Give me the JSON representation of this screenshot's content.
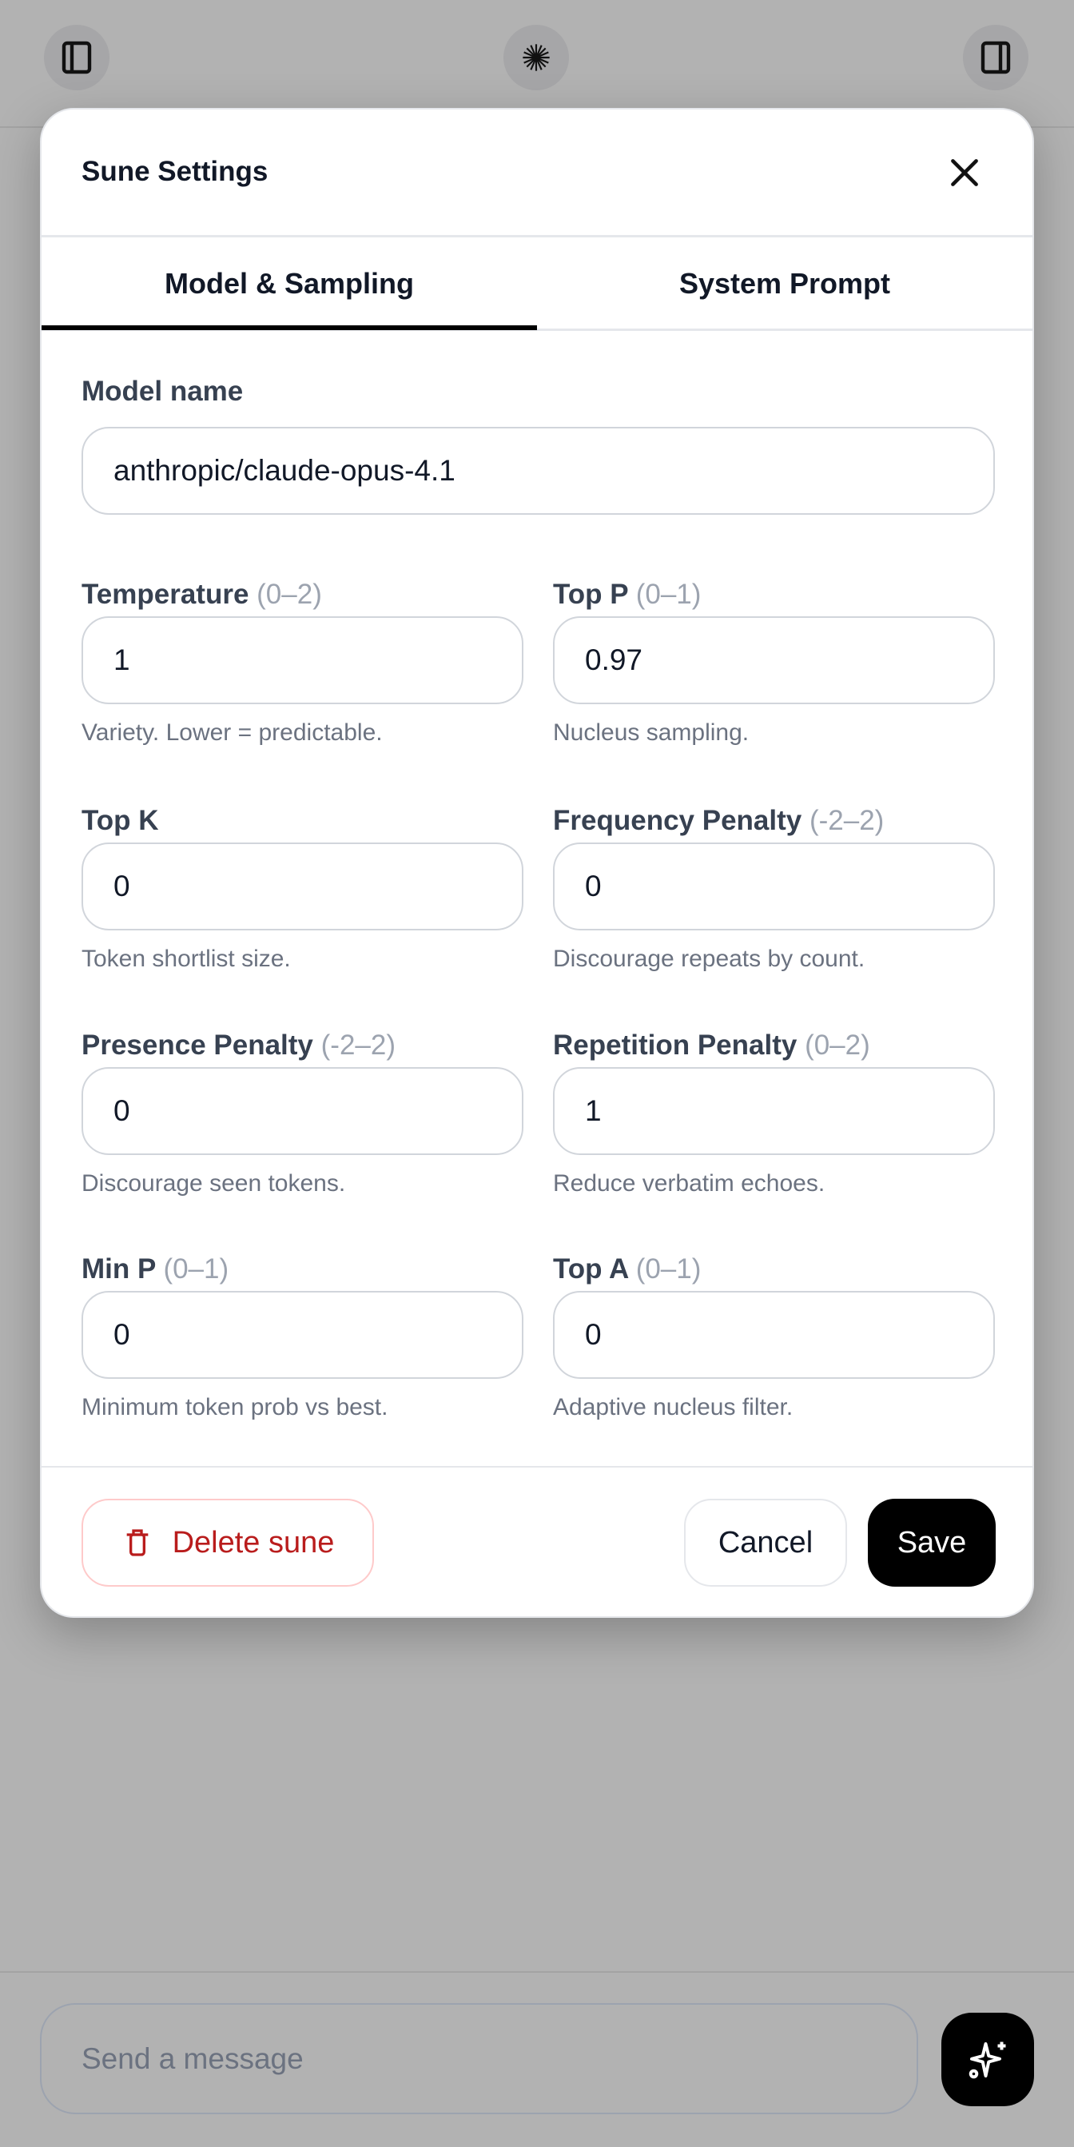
{
  "topbar": {
    "left_icon": "sidebar-left-icon",
    "center_icon": "starburst-logo-icon",
    "right_icon": "sidebar-right-icon"
  },
  "modal": {
    "title": "Sune Settings",
    "tabs": [
      {
        "label": "Model & Sampling",
        "active": true
      },
      {
        "label": "System Prompt",
        "active": false
      }
    ],
    "model_name": {
      "label": "Model name",
      "value": "anthropic/claude-opus-4.1"
    },
    "fields": [
      {
        "label": "Temperature",
        "range": "(0–2)",
        "value": "1",
        "hint": "Variety. Lower = predictable."
      },
      {
        "label": "Top P",
        "range": "(0–1)",
        "value": "0.97",
        "hint": "Nucleus sampling."
      },
      {
        "label": "Top K",
        "range": "",
        "value": "0",
        "hint": "Token shortlist size."
      },
      {
        "label": "Frequency Penalty",
        "range": "(-2–2)",
        "value": "0",
        "hint": "Discourage repeats by count."
      },
      {
        "label": "Presence Penalty",
        "range": "(-2–2)",
        "value": "0",
        "hint": "Discourage seen tokens."
      },
      {
        "label": "Repetition Penalty",
        "range": "(0–2)",
        "value": "1",
        "hint": "Reduce verbatim echoes."
      },
      {
        "label": "Min P",
        "range": "(0–1)",
        "value": "0",
        "hint": "Minimum token prob vs best."
      },
      {
        "label": "Top A",
        "range": "(0–1)",
        "value": "0",
        "hint": "Adaptive nucleus filter."
      }
    ],
    "footer": {
      "delete_label": "Delete sune",
      "cancel_label": "Cancel",
      "save_label": "Save"
    }
  },
  "composer": {
    "placeholder": "Send a message",
    "action_icon": "sparkle-icon"
  },
  "colors": {
    "danger": "#b91c1c",
    "primary": "#000000",
    "overlay": "#b2b2b2"
  }
}
